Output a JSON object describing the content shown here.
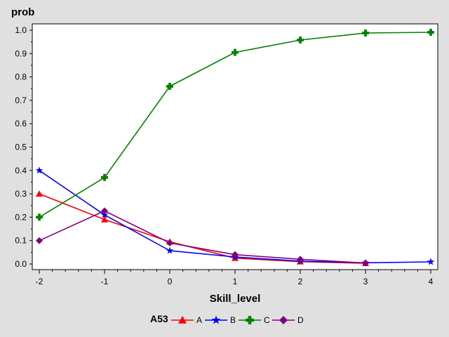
{
  "chart_data": {
    "type": "line",
    "ylabel": "prob",
    "xlabel": "Skill_level",
    "x": [
      -2,
      -1,
      0,
      1,
      2,
      3,
      4
    ],
    "xlim": [
      -2,
      4
    ],
    "ylim": [
      0,
      1
    ],
    "xticks": [
      "-2",
      "-1",
      "0",
      "1",
      "2",
      "3",
      "4"
    ],
    "yticks": [
      "0.0",
      "0.1",
      "0.2",
      "0.3",
      "0.4",
      "0.5",
      "0.6",
      "0.7",
      "0.8",
      "0.9",
      "1.0"
    ],
    "legend_title": "A53",
    "legend_position": "bottom",
    "grid": false,
    "series": [
      {
        "name": "A",
        "color": "#ff0000",
        "marker": "triangle",
        "values": [
          0.3,
          0.19,
          0.095,
          0.025,
          0.01,
          0.003,
          null
        ]
      },
      {
        "name": "B",
        "color": "#0000ff",
        "marker": "star",
        "values": [
          0.4,
          0.21,
          0.057,
          0.03,
          0.012,
          0.005,
          0.009
        ]
      },
      {
        "name": "C",
        "color": "#008000",
        "marker": "plus",
        "values": [
          0.2,
          0.37,
          0.76,
          0.905,
          0.958,
          0.988,
          0.991
        ]
      },
      {
        "name": "D",
        "color": "#800080",
        "marker": "diamond",
        "values": [
          0.1,
          0.227,
          0.09,
          0.04,
          0.02,
          0.004,
          null
        ]
      }
    ]
  }
}
